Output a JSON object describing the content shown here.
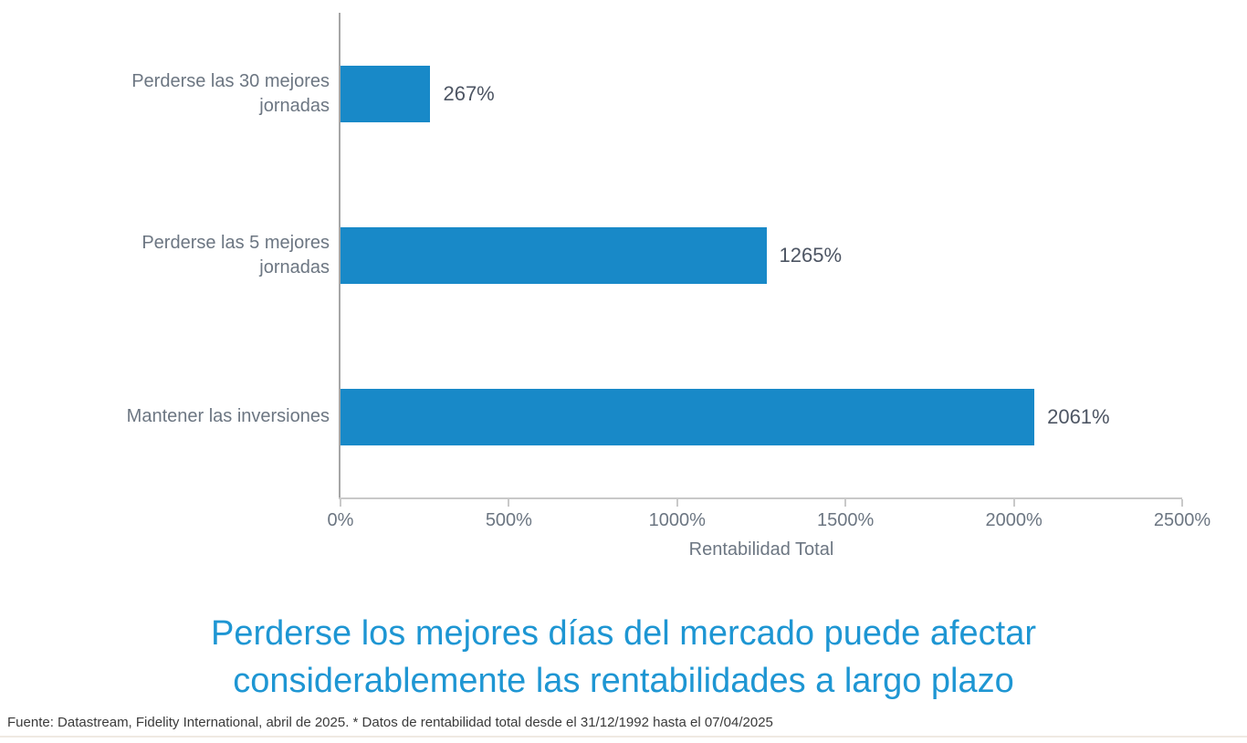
{
  "chart_data": {
    "type": "bar",
    "orientation": "horizontal",
    "title": "Perderse los mejores días del mercado puede afectar considerablemente las rentabilidades a largo plazo",
    "categories": [
      "Perderse las 30 mejores jornadas",
      "Perderse las 5 mejores jornadas",
      "Mantener las inversiones"
    ],
    "values": [
      267,
      1265,
      2061
    ],
    "value_labels": [
      "267%",
      "1265%",
      "2061%"
    ],
    "xlabel": "Rentabilidad Total",
    "ylabel": "",
    "xlim": [
      0,
      2500
    ],
    "x_ticks": [
      0,
      500,
      1000,
      1500,
      2000,
      2500
    ],
    "x_tick_labels": [
      "0%",
      "500%",
      "1000%",
      "1500%",
      "2000%",
      "2500%"
    ],
    "grid": false,
    "legend": null,
    "bar_color": "#1889c8"
  },
  "title": {
    "line1": "Perderse los mejores días del mercado puede afectar",
    "line2": "considerablemente las rentabilidades a largo plazo",
    "color": "#1e96d3"
  },
  "footer": {
    "text": "Fuente: Datastream, Fidelity International, abril de 2025. * Datos de rentabilidad total desde el 31/12/1992 hasta el 07/04/2025"
  },
  "colors": {
    "bar": "#1889c8",
    "category_label": "#6c7682",
    "value_label": "#4d5563",
    "axis_line": "#c9c9c9",
    "y_axis_line": "#a6a6a6"
  }
}
